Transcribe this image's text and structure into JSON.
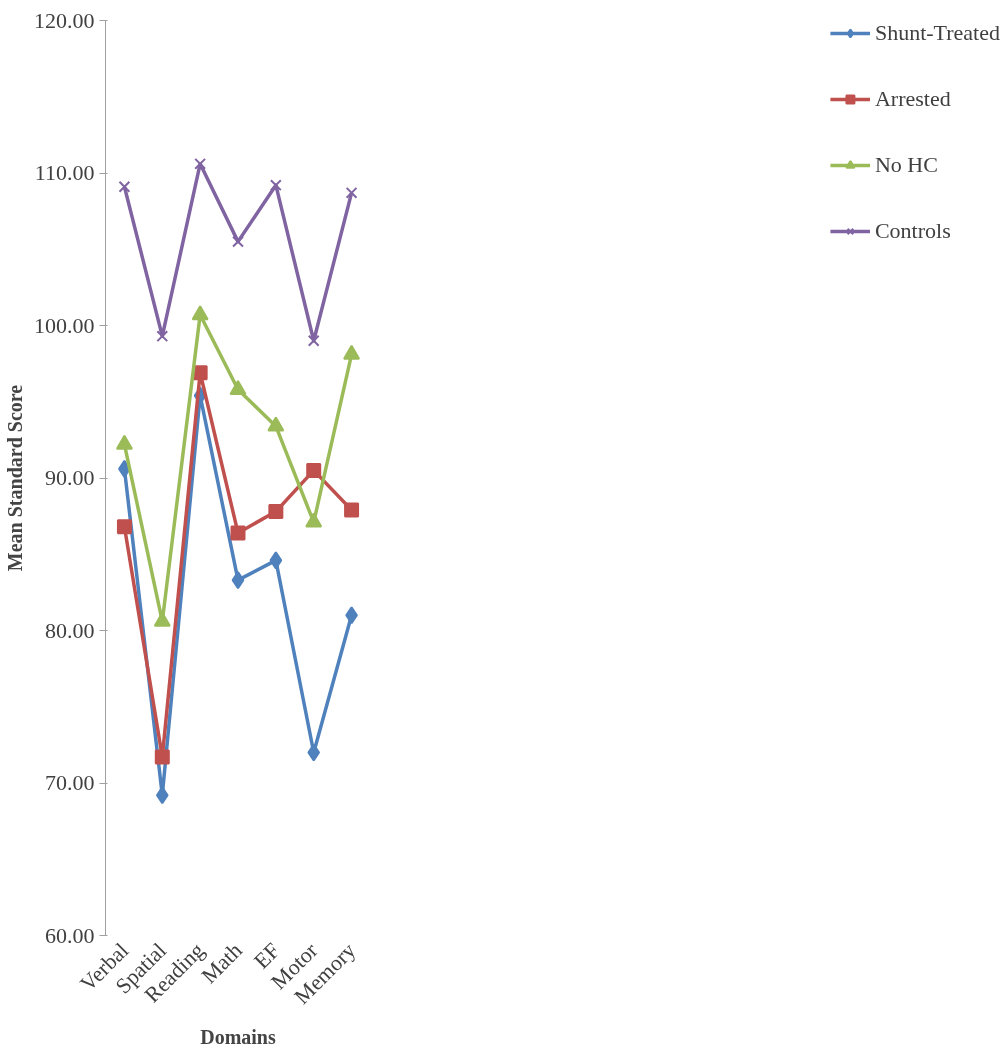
{
  "chart_data": {
    "type": "line",
    "xlabel": "Domains",
    "ylabel": "Mean Standard Score",
    "categories": [
      "Verbal",
      "Spatial",
      "Reading",
      "Math",
      "EF",
      "Motor",
      "Memory"
    ],
    "series": [
      {
        "name": "Shunt-Treated",
        "color": "#4f81bd",
        "marker": "diamond",
        "values": [
          90.6,
          69.2,
          95.4,
          83.3,
          84.6,
          72.0,
          81.0
        ]
      },
      {
        "name": "Arrested",
        "color": "#c0504d",
        "marker": "square",
        "values": [
          86.8,
          71.7,
          96.9,
          86.4,
          87.8,
          90.5,
          87.9
        ]
      },
      {
        "name": "No HC",
        "color": "#9bbb59",
        "marker": "triangle",
        "values": [
          92.2,
          80.6,
          100.7,
          95.8,
          93.4,
          87.1,
          98.1
        ]
      },
      {
        "name": "Controls",
        "color": "#8064a2",
        "marker": "cross",
        "values": [
          109.1,
          99.3,
          110.6,
          105.5,
          109.2,
          99.0,
          108.7
        ]
      }
    ],
    "ylim": [
      60,
      120
    ],
    "yticks": [
      {
        "value": 60,
        "label": "60.00"
      },
      {
        "value": 70,
        "label": "70.00"
      },
      {
        "value": 80,
        "label": "80.00"
      },
      {
        "value": 90,
        "label": "90.00"
      },
      {
        "value": 100,
        "label": "100.00"
      },
      {
        "value": 110,
        "label": "110.00"
      },
      {
        "value": 120,
        "label": "120.00"
      }
    ],
    "grid": false,
    "legend": "right",
    "line_style": "solid"
  }
}
